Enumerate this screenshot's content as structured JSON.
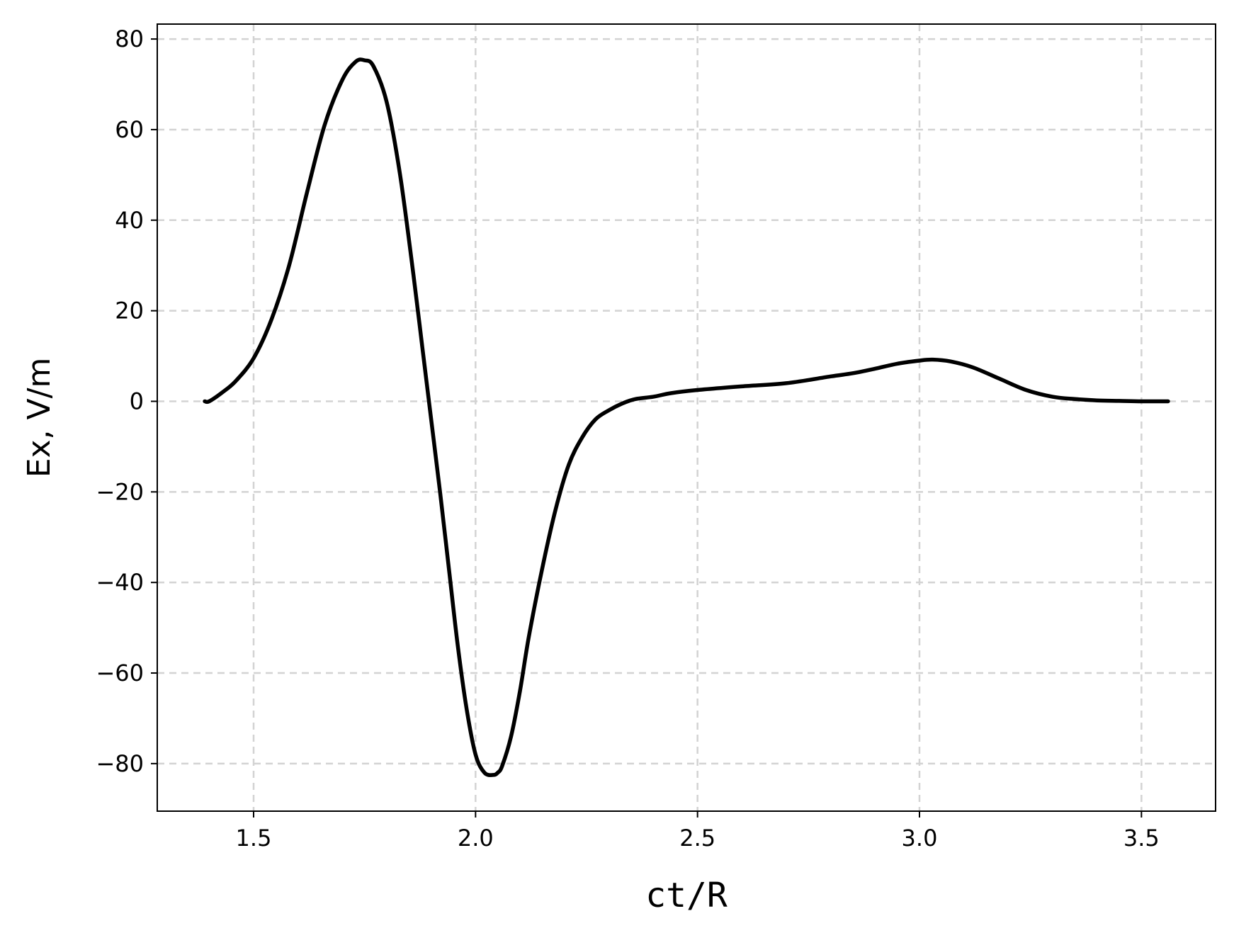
{
  "chart_data": {
    "type": "line",
    "title": "",
    "xlabel": "ct/R",
    "ylabel": "Ex, V/m",
    "xlim": [
      1.283,
      3.667
    ],
    "ylim": [
      -90.5,
      83.3
    ],
    "xticks": [
      1.5,
      2.0,
      2.5,
      3.0,
      3.5
    ],
    "xtick_labels": [
      "1.5",
      "2.0",
      "2.5",
      "3.0",
      "3.5"
    ],
    "yticks": [
      -80,
      -60,
      -40,
      -20,
      0,
      20,
      40,
      60,
      80
    ],
    "ytick_labels": [
      "−80",
      "−60",
      "−40",
      "−20",
      "0",
      "20",
      "40",
      "60",
      "80"
    ],
    "grid": true,
    "legend": "none",
    "series": [
      {
        "color": "#000000",
        "x": [
          1.39,
          1.4,
          1.43,
          1.46,
          1.5,
          1.54,
          1.58,
          1.62,
          1.66,
          1.7,
          1.73,
          1.75,
          1.77,
          1.8,
          1.83,
          1.86,
          1.88,
          1.9,
          1.92,
          1.94,
          1.96,
          1.98,
          2.0,
          2.02,
          2.04,
          2.05,
          2.06,
          2.08,
          2.1,
          2.12,
          2.15,
          2.18,
          2.21,
          2.24,
          2.27,
          2.3,
          2.33,
          2.36,
          2.4,
          2.44,
          2.5,
          2.6,
          2.7,
          2.8,
          2.85,
          2.9,
          2.95,
          3.0,
          3.03,
          3.07,
          3.12,
          3.18,
          3.24,
          3.3,
          3.35,
          3.4,
          3.45,
          3.5,
          3.56
        ],
        "y": [
          0,
          0,
          2,
          4.5,
          9.5,
          18,
          30,
          46,
          61,
          71,
          75,
          75.3,
          74,
          66,
          50,
          28,
          12,
          -4,
          -20,
          -37,
          -54,
          -68,
          -78,
          -82,
          -82.5,
          -82,
          -80.5,
          -74,
          -64,
          -52,
          -37,
          -24,
          -14,
          -8,
          -4,
          -2,
          -0.5,
          0.5,
          1,
          1.8,
          2.5,
          3.3,
          4,
          5.5,
          6.2,
          7.2,
          8.3,
          9,
          9.2,
          8.8,
          7.5,
          5,
          2.5,
          1,
          0.5,
          0.2,
          0.1,
          0,
          0
        ]
      }
    ]
  }
}
